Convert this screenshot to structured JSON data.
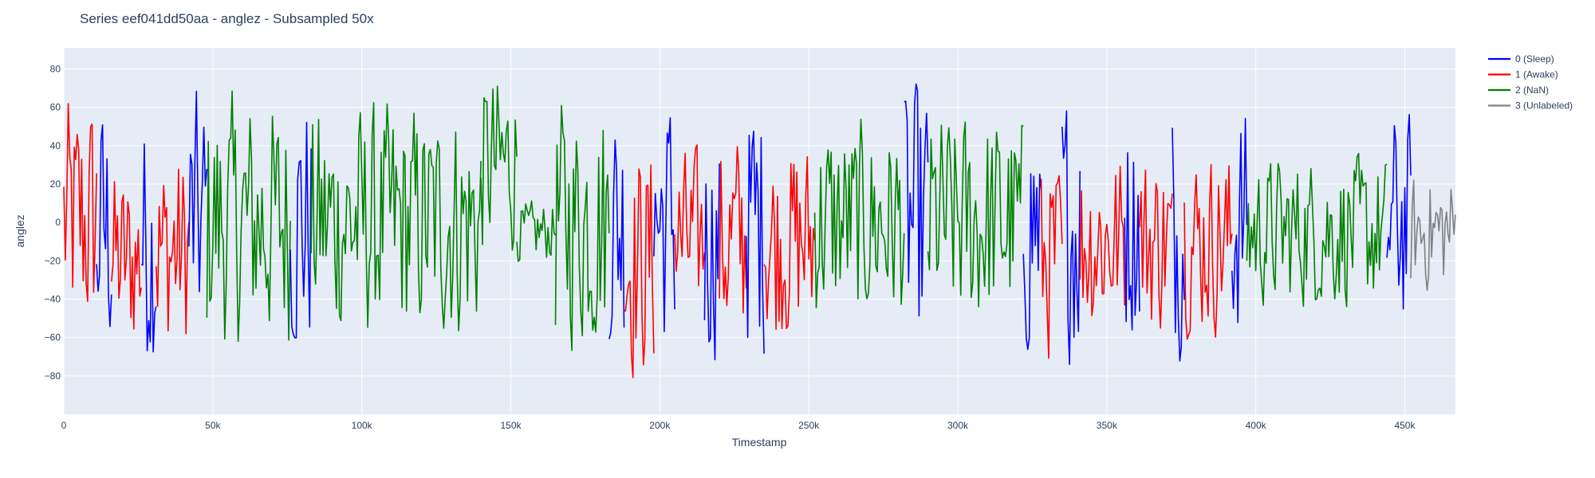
{
  "chart_data": {
    "type": "line",
    "title": "Series eef041dd50aa - anglez - Subsampled 50x",
    "xlabel": "Timestamp",
    "ylabel": "anglez",
    "xlim": [
      0,
      467000
    ],
    "ylim": [
      -100,
      91
    ],
    "x_ticks": [
      0,
      50000,
      100000,
      150000,
      200000,
      250000,
      300000,
      350000,
      400000,
      450000
    ],
    "x_tick_labels": [
      "0",
      "50k",
      "100k",
      "150k",
      "200k",
      "250k",
      "300k",
      "350k",
      "400k",
      "450k"
    ],
    "y_ticks": [
      -80,
      -60,
      -40,
      -20,
      0,
      20,
      40,
      60,
      80
    ],
    "y_tick_labels": [
      "−80",
      "−60",
      "−40",
      "−20",
      "0",
      "20",
      "40",
      "60",
      "80"
    ],
    "grid": true,
    "legend_position": "top-right",
    "series": [
      {
        "name": "0 (Sleep)",
        "color": "#0000ff"
      },
      {
        "name": "1 (Awake)",
        "color": "#ff0000"
      },
      {
        "name": "2 (NaN)",
        "color": "#008000"
      },
      {
        "name": "3 (Unlabeled)",
        "color": "#808080"
      }
    ],
    "segments": [
      {
        "series": 1,
        "x": [
          0,
          11000
        ],
        "center": 0,
        "amp": 75
      },
      {
        "series": 0,
        "x": [
          11000,
          16000
        ],
        "center": -5,
        "amp": 78
      },
      {
        "series": 1,
        "x": [
          16000,
          26000
        ],
        "center": -20,
        "amp": 55
      },
      {
        "series": 0,
        "x": [
          26000,
          31000
        ],
        "center": -10,
        "amp": 75
      },
      {
        "series": 1,
        "x": [
          31000,
          42000
        ],
        "center": -15,
        "amp": 60
      },
      {
        "series": 0,
        "x": [
          42000,
          48000
        ],
        "center": 0,
        "amp": 78
      },
      {
        "series": 2,
        "x": [
          48000,
          76000
        ],
        "center": 0,
        "amp": 75
      },
      {
        "series": 0,
        "x": [
          76000,
          83000
        ],
        "center": 0,
        "amp": 80
      },
      {
        "series": 2,
        "x": [
          83000,
          140000
        ],
        "center": 0,
        "amp": 70
      },
      {
        "series": 2,
        "x": [
          140000,
          152000
        ],
        "center": 30,
        "amp": 55
      },
      {
        "series": 2,
        "x": [
          152000,
          165000
        ],
        "center": -5,
        "amp": 18
      },
      {
        "series": 2,
        "x": [
          165000,
          183000
        ],
        "center": 0,
        "amp": 75
      },
      {
        "series": 0,
        "x": [
          183000,
          188000
        ],
        "center": 0,
        "amp": 78
      },
      {
        "series": 1,
        "x": [
          188000,
          198000
        ],
        "center": -20,
        "amp": 70
      },
      {
        "series": 0,
        "x": [
          198000,
          205000
        ],
        "center": 0,
        "amp": 78
      },
      {
        "series": 1,
        "x": [
          205000,
          215000
        ],
        "center": -10,
        "amp": 55
      },
      {
        "series": 0,
        "x": [
          215000,
          220000
        ],
        "center": -10,
        "amp": 70
      },
      {
        "series": 1,
        "x": [
          220000,
          229000
        ],
        "center": -10,
        "amp": 65
      },
      {
        "series": 0,
        "x": [
          229000,
          235000
        ],
        "center": 0,
        "amp": 78
      },
      {
        "series": 1,
        "x": [
          235000,
          252000
        ],
        "center": -10,
        "amp": 60
      },
      {
        "series": 2,
        "x": [
          252000,
          282000
        ],
        "center": 0,
        "amp": 60
      },
      {
        "series": 0,
        "x": [
          282000,
          290000
        ],
        "center": 0,
        "amp": 80
      },
      {
        "series": 2,
        "x": [
          290000,
          322000
        ],
        "center": 0,
        "amp": 65
      },
      {
        "series": 0,
        "x": [
          322000,
          328000
        ],
        "center": 0,
        "amp": 80
      },
      {
        "series": 1,
        "x": [
          328000,
          335000
        ],
        "center": -20,
        "amp": 60
      },
      {
        "series": 0,
        "x": [
          335000,
          341000
        ],
        "center": 0,
        "amp": 80
      },
      {
        "series": 1,
        "x": [
          341000,
          356000
        ],
        "center": -10,
        "amp": 55
      },
      {
        "series": 0,
        "x": [
          356000,
          361000
        ],
        "center": 0,
        "amp": 70
      },
      {
        "series": 1,
        "x": [
          361000,
          372000
        ],
        "center": -10,
        "amp": 55
      },
      {
        "series": 0,
        "x": [
          372000,
          376000
        ],
        "center": 0,
        "amp": 80
      },
      {
        "series": 1,
        "x": [
          376000,
          392000
        ],
        "center": -10,
        "amp": 55
      },
      {
        "series": 0,
        "x": [
          392000,
          397000
        ],
        "center": 0,
        "amp": 70
      },
      {
        "series": 2,
        "x": [
          397000,
          444000
        ],
        "center": -5,
        "amp": 45
      },
      {
        "series": 0,
        "x": [
          444000,
          452000
        ],
        "center": 0,
        "amp": 65
      },
      {
        "series": 3,
        "x": [
          452000,
          467000
        ],
        "center": -5,
        "amp": 35
      }
    ]
  }
}
